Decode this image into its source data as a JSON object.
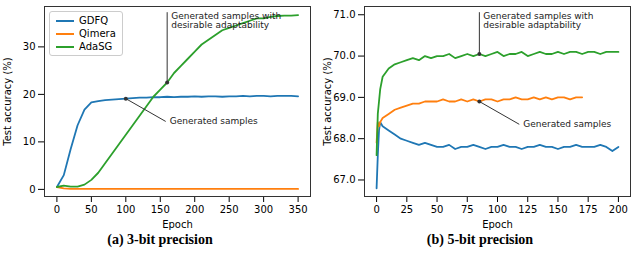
{
  "chart_data": [
    {
      "type": "line",
      "title": "(a) 3-bit precision",
      "x_label": "Epoch",
      "y_label": "Test accuracy (%)",
      "x": [
        0,
        10,
        20,
        30,
        40,
        50,
        60,
        70,
        80,
        90,
        100,
        110,
        120,
        130,
        140,
        150,
        160,
        170,
        180,
        190,
        200,
        210,
        220,
        230,
        240,
        250,
        260,
        270,
        280,
        290,
        300,
        310,
        320,
        330,
        340,
        350
      ],
      "series": [
        {
          "name": "GDFQ",
          "color": "#1f77b4",
          "values": [
            0.5,
            3,
            8.5,
            13.5,
            16.8,
            18.3,
            18.6,
            18.8,
            18.9,
            19.0,
            19.1,
            19.2,
            19.3,
            19.3,
            19.4,
            19.4,
            19.5,
            19.4,
            19.5,
            19.5,
            19.6,
            19.5,
            19.6,
            19.6,
            19.5,
            19.6,
            19.6,
            19.7,
            19.6,
            19.7,
            19.7,
            19.6,
            19.7,
            19.7,
            19.7,
            19.6
          ]
        },
        {
          "name": "Qimera",
          "color": "#ff7f0e",
          "values": [
            0.5,
            0.2,
            0.1,
            0.1,
            0.1,
            0.1,
            0.1,
            0.1,
            0.1,
            0.1,
            0.1,
            0.1,
            0.1,
            0.1,
            0.1,
            0.1,
            0.1,
            0.1,
            0.1,
            0.1,
            0.1,
            0.1,
            0.1,
            0.1,
            0.1,
            0.1,
            0.1,
            0.1,
            0.1,
            0.1,
            0.1,
            0.1,
            0.1,
            0.1,
            0.1,
            0.1
          ]
        },
        {
          "name": "AdaSG",
          "color": "#2ca02c",
          "values": [
            0.5,
            0.8,
            0.6,
            0.6,
            1.0,
            2.0,
            3.5,
            5.5,
            7.5,
            9.5,
            11.5,
            13.5,
            15.5,
            17.5,
            19.5,
            21.0,
            22.5,
            24.5,
            26.0,
            27.5,
            29.0,
            30.5,
            31.5,
            32.5,
            33.5,
            34.0,
            34.5,
            35.0,
            35.5,
            36.0,
            36.0,
            36.3,
            36.5,
            36.6,
            36.6,
            36.7
          ]
        }
      ],
      "xlim": [
        -18,
        368
      ],
      "xticks": [
        0,
        50,
        100,
        150,
        200,
        250,
        300,
        350
      ],
      "ylim": [
        -1.5,
        38.5
      ],
      "yticks": [
        0,
        10,
        20,
        30
      ],
      "grid": false,
      "legend": "upper left",
      "annotations": [
        {
          "text": "Generated samples with desirable adaptability",
          "x": 160,
          "y": 22.5
        },
        {
          "text": "Generated samples",
          "x": 100,
          "y": 19.1
        }
      ]
    },
    {
      "type": "line",
      "title": "(b) 5-bit precision",
      "x_label": "Epoch",
      "y_label": "Test accuracy (%)",
      "x": [
        0,
        1,
        2,
        3,
        5,
        10,
        15,
        20,
        25,
        30,
        35,
        40,
        45,
        50,
        55,
        60,
        65,
        70,
        75,
        80,
        85,
        90,
        95,
        100,
        105,
        110,
        115,
        120,
        125,
        130,
        135,
        140,
        145,
        150,
        155,
        160,
        165,
        170,
        175,
        180,
        185,
        190,
        195,
        200
      ],
      "series": [
        {
          "name": "GDFQ",
          "color": "#1f77b4",
          "values": [
            66.8,
            67.6,
            68.2,
            68.4,
            68.3,
            68.2,
            68.1,
            68.0,
            67.95,
            67.9,
            67.85,
            67.9,
            67.85,
            67.8,
            67.8,
            67.85,
            67.75,
            67.8,
            67.8,
            67.85,
            67.8,
            67.75,
            67.8,
            67.8,
            67.85,
            67.8,
            67.8,
            67.75,
            67.8,
            67.8,
            67.85,
            67.8,
            67.8,
            67.75,
            67.8,
            67.8,
            67.85,
            67.8,
            67.8,
            67.8,
            67.85,
            67.8,
            67.7,
            67.8
          ]
        },
        {
          "name": "Qimera",
          "color": "#ff7f0e",
          "values": [
            67.9,
            68.4,
            68.3,
            68.4,
            68.5,
            68.6,
            68.7,
            68.75,
            68.8,
            68.85,
            68.85,
            68.9,
            68.9,
            68.9,
            68.95,
            68.9,
            68.9,
            68.95,
            68.9,
            68.95,
            68.9,
            68.95,
            68.95,
            68.9,
            68.95,
            68.95,
            69.0,
            68.95,
            68.95,
            69.0,
            68.95,
            69.0,
            68.95,
            69.0,
            69.0,
            68.95,
            69.0,
            69.0,
            null,
            null,
            null,
            null,
            null,
            null
          ]
        },
        {
          "name": "AdaSG",
          "color": "#2ca02c",
          "values": [
            67.6,
            68.6,
            68.9,
            69.2,
            69.5,
            69.7,
            69.8,
            69.85,
            69.9,
            69.95,
            69.9,
            70.0,
            69.95,
            70.0,
            70.0,
            70.05,
            69.95,
            70.0,
            70.05,
            70.0,
            70.05,
            70.0,
            70.05,
            70.1,
            70.0,
            70.05,
            70.05,
            70.1,
            70.0,
            70.05,
            70.1,
            70.05,
            70.05,
            70.1,
            70.05,
            70.1,
            70.1,
            70.05,
            70.1,
            70.1,
            70.05,
            70.1,
            70.1,
            70.1
          ]
        }
      ],
      "xlim": [
        -10,
        210
      ],
      "xticks": [
        0,
        25,
        50,
        75,
        100,
        125,
        150,
        175,
        200
      ],
      "ylim": [
        66.6,
        71.2
      ],
      "yticks": [
        67,
        68,
        69,
        70,
        71
      ],
      "grid": false,
      "annotations": [
        {
          "text": "Generated samples with desirable adaptability",
          "x": 85,
          "y": 70.05
        },
        {
          "text": "Generated samples",
          "x": 85,
          "y": 68.9
        }
      ]
    }
  ]
}
